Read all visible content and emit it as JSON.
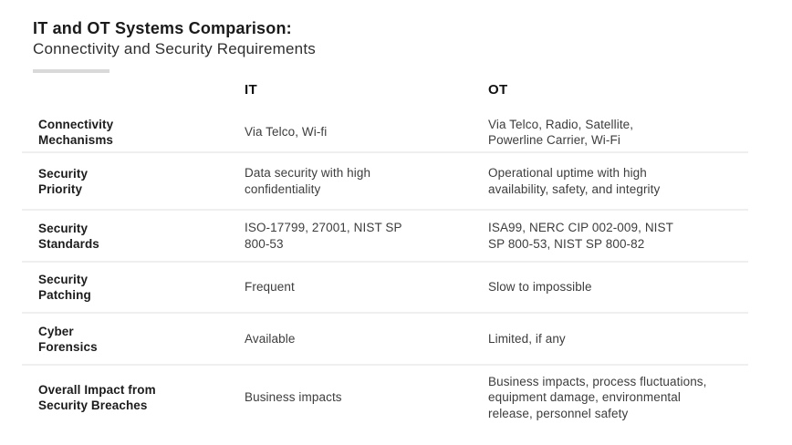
{
  "header": {
    "title": "IT and OT Systems Comparison:",
    "subtitle": "Connectivity and Security Requirements"
  },
  "table": {
    "columns": [
      "IT",
      "OT"
    ],
    "rows": [
      {
        "label": "Connectivity\nMechanisms",
        "it": "Via Telco, Wi-fi",
        "ot": "Via Telco, Radio, Satellite,\nPowerline Carrier, Wi-Fi"
      },
      {
        "label": "Security\nPriority",
        "it": "Data security with high\nconfidentiality",
        "ot": "Operational uptime with high\navailability, safety, and integrity"
      },
      {
        "label": "Security\nStandards",
        "it": "ISO-17799, 27001, NIST SP\n800-53",
        "ot": "ISA99, NERC CIP 002-009, NIST\nSP 800-53, NIST SP 800-82"
      },
      {
        "label": "Security\nPatching",
        "it": "Frequent",
        "ot": "Slow to impossible"
      },
      {
        "label": "Cyber\nForensics",
        "it": "Available",
        "ot": "Limited, if any"
      },
      {
        "label": "Overall Impact from\nSecurity Breaches",
        "it": "Business impacts",
        "ot": "Business impacts, process fluctuations,\nequipment damage, environmental\nrelease, personnel safety"
      }
    ]
  },
  "colors": {
    "background": "#ffffff",
    "title_text": "#1a1a1a",
    "body_text": "#3d3d3d",
    "divider": "#efefef",
    "accent_bar": "#d9d9d9"
  }
}
